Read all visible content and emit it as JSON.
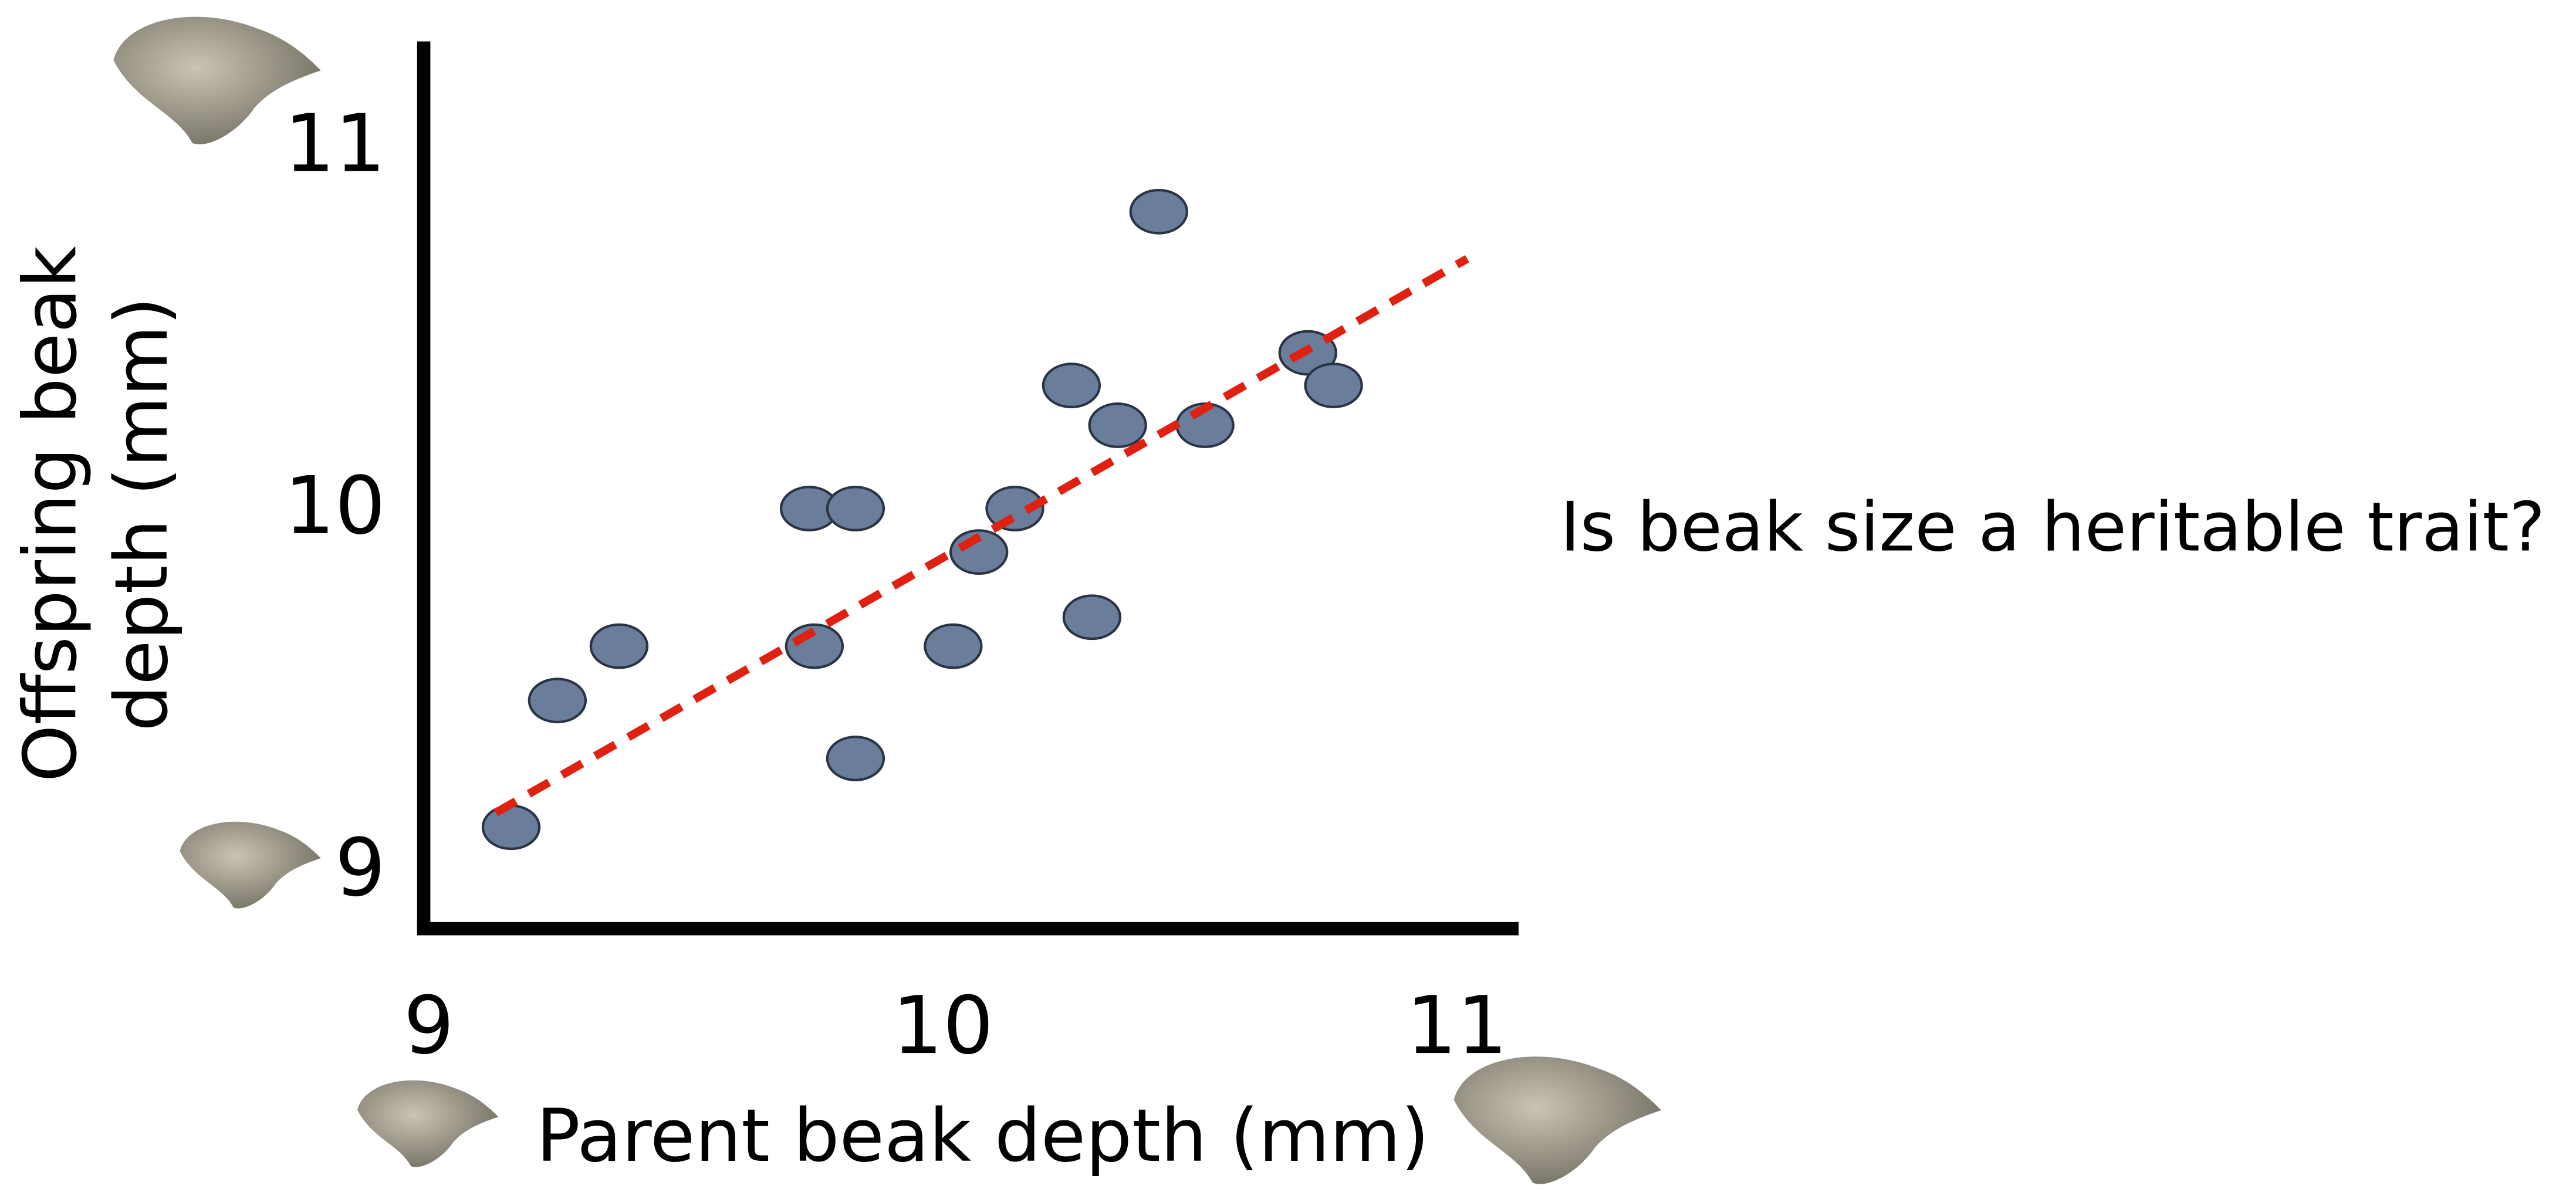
{
  "chart_data": {
    "type": "scatter",
    "ylabel_lines": [
      "Offspring beak",
      "depth (mm)"
    ],
    "xlabel": "Parent beak depth (mm)",
    "annotation": "Is beak size a heritable trait?",
    "x": [
      9.16,
      9.25,
      9.37,
      9.75,
      9.74,
      9.83,
      9.83,
      10.02,
      10.07,
      10.14,
      10.29,
      10.25,
      10.34,
      10.51,
      10.42,
      10.71,
      10.76
    ],
    "values": [
      9.11,
      9.46,
      9.61,
      9.61,
      9.99,
      9.99,
      9.3,
      9.61,
      9.87,
      9.99,
      9.69,
      10.33,
      10.22,
      10.22,
      10.81,
      10.42,
      10.33
    ],
    "color": "#6a7d9a",
    "trendline": {
      "x": [
        9.13,
        11.02
      ],
      "y": [
        9.15,
        10.68
      ],
      "color": "#e02010"
    },
    "xlim": [
      8.99,
      11.12
    ],
    "ylim": [
      8.83,
      11.28
    ],
    "xticks": [
      9,
      10,
      11
    ],
    "yticks": [
      9,
      10,
      11
    ],
    "grid": false
  }
}
